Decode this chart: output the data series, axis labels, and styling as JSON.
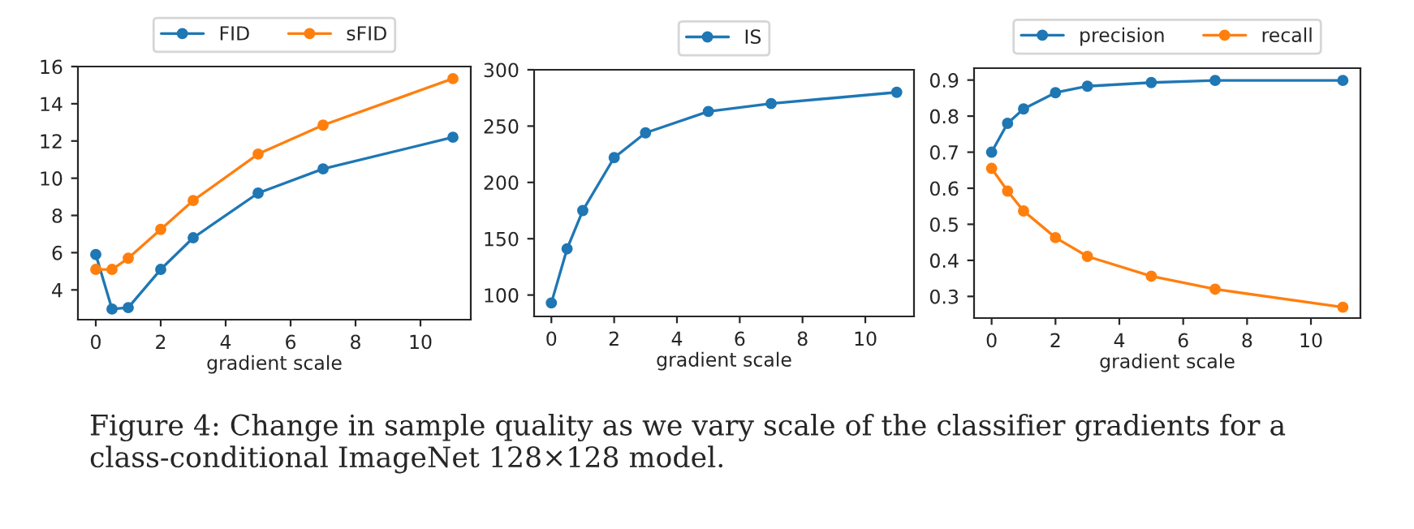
{
  "chart_data": [
    {
      "type": "line",
      "xlabel": "gradient scale",
      "x": [
        0,
        0.5,
        1,
        2,
        3,
        5,
        7,
        11
      ],
      "xlim": [
        -0.55,
        11.55
      ],
      "xticks": [
        0,
        2,
        4,
        6,
        8,
        10
      ],
      "ylim": [
        2.4,
        16
      ],
      "yticks": [
        4,
        6,
        8,
        10,
        12,
        14,
        16
      ],
      "legend": "top",
      "marker": "circle",
      "grid": false,
      "series": [
        {
          "name": "FID",
          "color": "#1f77b4",
          "values": [
            5.9,
            2.97,
            3.05,
            5.1,
            6.8,
            9.2,
            10.5,
            12.2
          ]
        },
        {
          "name": "sFID",
          "color": "#ff7f0e",
          "values": [
            5.1,
            5.1,
            5.7,
            7.25,
            8.8,
            11.3,
            12.85,
            15.35
          ]
        }
      ],
      "annotations": [
        "Figure 4: Change in sample quality as we vary scale of the classifier gradients for a class-conditional ImageNet 128×128 model."
      ]
    },
    {
      "type": "line",
      "xlabel": "gradient scale",
      "x": [
        0,
        0.5,
        1,
        2,
        3,
        5,
        7,
        11
      ],
      "xlim": [
        -0.55,
        11.55
      ],
      "xticks": [
        0,
        2,
        4,
        6,
        8,
        10
      ],
      "ylim": [
        81,
        300
      ],
      "yticks": [
        100,
        150,
        200,
        250,
        300
      ],
      "legend": "top",
      "marker": "circle",
      "grid": false,
      "series": [
        {
          "name": "IS",
          "color": "#1f77b4",
          "values": [
            93,
            141,
            175,
            222,
            244,
            263,
            270,
            280
          ]
        }
      ]
    },
    {
      "type": "line",
      "xlabel": "gradient scale",
      "x": [
        0,
        0.5,
        1,
        2,
        3,
        5,
        7,
        11
      ],
      "xlim": [
        -0.55,
        11.55
      ],
      "xticks": [
        0,
        2,
        4,
        6,
        8,
        10
      ],
      "ylim": [
        0.24,
        0.933
      ],
      "yticks": [
        0.3,
        0.4,
        0.5,
        0.6,
        0.7,
        0.8,
        0.9
      ],
      "legend": "top",
      "marker": "circle",
      "grid": false,
      "series": [
        {
          "name": "precision",
          "color": "#1f77b4",
          "values": [
            0.7,
            0.78,
            0.82,
            0.865,
            0.883,
            0.893,
            0.899,
            0.899
          ]
        },
        {
          "name": "recall",
          "color": "#ff7f0e",
          "values": [
            0.655,
            0.592,
            0.537,
            0.463,
            0.411,
            0.356,
            0.32,
            0.27
          ]
        }
      ]
    }
  ]
}
